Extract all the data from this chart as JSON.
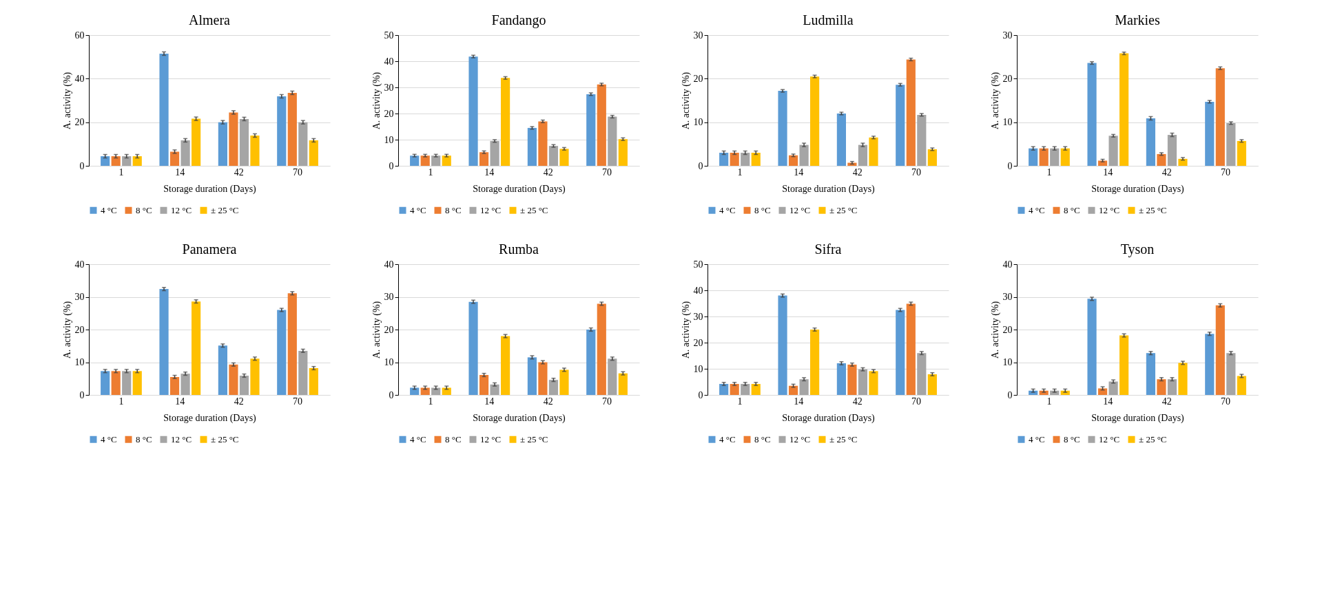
{
  "chart_data": [
    {
      "type": "bar",
      "title": "Almera",
      "xlabel": "Storage duration (Days)",
      "ylabel": "A. activity (%)",
      "categories": [
        "1",
        "14",
        "42",
        "70"
      ],
      "ylim": [
        0,
        60
      ],
      "yticks": [
        0,
        20,
        40,
        60
      ],
      "grid": "y",
      "legend": "bottom",
      "series": [
        {
          "name": "4 °C",
          "color": "#5b9bd5",
          "values": [
            4.4,
            51.5,
            20,
            31.9
          ],
          "errors": [
            0.8,
            0.8,
            0.8,
            0.8
          ]
        },
        {
          "name": "8 °C",
          "color": "#ed7d31",
          "values": [
            4.4,
            6.5,
            24.5,
            33.5
          ],
          "errors": [
            0.8,
            0.8,
            0.8,
            0.8
          ]
        },
        {
          "name": "12 °C",
          "color": "#a5a5a5",
          "values": [
            4.4,
            11.7,
            21.5,
            20
          ],
          "errors": [
            0.8,
            0.8,
            0.8,
            0.8
          ]
        },
        {
          "name": "± 25 °C",
          "color": "#ffc000",
          "values": [
            4.4,
            21.6,
            13.9,
            11.7
          ],
          "errors": [
            0.8,
            0.8,
            0.8,
            0.8
          ]
        }
      ]
    },
    {
      "type": "bar",
      "title": "Fandango",
      "xlabel": "Storage duration (Days)",
      "ylabel": "A. activity (%)",
      "categories": [
        "1",
        "14",
        "42",
        "70"
      ],
      "ylim": [
        0,
        50
      ],
      "yticks": [
        0,
        10,
        20,
        30,
        40,
        50
      ],
      "grid": "y",
      "legend": "bottom",
      "series": [
        {
          "name": "4 °C",
          "color": "#5b9bd5",
          "values": [
            3.9,
            41.8,
            14.5,
            27.4
          ],
          "errors": [
            0.5,
            0.5,
            0.5,
            0.5
          ]
        },
        {
          "name": "8 °C",
          "color": "#ed7d31",
          "values": [
            3.9,
            5.2,
            17,
            31.1
          ],
          "errors": [
            0.5,
            0.5,
            0.5,
            0.5
          ]
        },
        {
          "name": "12 °C",
          "color": "#a5a5a5",
          "values": [
            3.9,
            9.5,
            7.6,
            18.8
          ],
          "errors": [
            0.5,
            0.5,
            0.5,
            0.5
          ]
        },
        {
          "name": "± 25 °C",
          "color": "#ffc000",
          "values": [
            3.9,
            33.6,
            6.5,
            10.2
          ],
          "errors": [
            0.5,
            0.5,
            0.5,
            0.5
          ]
        }
      ]
    },
    {
      "type": "bar",
      "title": "Ludmilla",
      "xlabel": "Storage duration (Days)",
      "ylabel": "A. activity (%)",
      "categories": [
        "1",
        "14",
        "42",
        "70"
      ],
      "ylim": [
        0,
        30
      ],
      "yticks": [
        0,
        10,
        20,
        30
      ],
      "grid": "y",
      "legend": "bottom",
      "series": [
        {
          "name": "4 °C",
          "color": "#5b9bd5",
          "values": [
            3.0,
            17.2,
            12,
            18.6
          ],
          "errors": [
            0.4,
            0.3,
            0.3,
            0.3
          ]
        },
        {
          "name": "8 °C",
          "color": "#ed7d31",
          "values": [
            3.0,
            2.4,
            0.7,
            24.4
          ],
          "errors": [
            0.4,
            0.3,
            0.3,
            0.3
          ]
        },
        {
          "name": "12 °C",
          "color": "#a5a5a5",
          "values": [
            3.0,
            4.8,
            4.8,
            11.7
          ],
          "errors": [
            0.4,
            0.4,
            0.4,
            0.3
          ]
        },
        {
          "name": "± 25 °C",
          "color": "#ffc000",
          "values": [
            3.0,
            20.5,
            6.5,
            3.8
          ],
          "errors": [
            0.4,
            0.3,
            0.3,
            0.3
          ]
        }
      ]
    },
    {
      "type": "bar",
      "title": "Markies",
      "xlabel": "Storage duration (Days)",
      "ylabel": "A. activity (%)",
      "categories": [
        "1",
        "14",
        "42",
        "70"
      ],
      "ylim": [
        0,
        30
      ],
      "yticks": [
        0,
        10,
        20,
        30
      ],
      "grid": "y",
      "legend": "bottom",
      "series": [
        {
          "name": "4 °C",
          "color": "#5b9bd5",
          "values": [
            4.0,
            23.6,
            10.9,
            14.7
          ],
          "errors": [
            0.4,
            0.3,
            0.4,
            0.3
          ]
        },
        {
          "name": "8 °C",
          "color": "#ed7d31",
          "values": [
            4.0,
            1.2,
            2.7,
            22.4
          ],
          "errors": [
            0.4,
            0.3,
            0.3,
            0.3
          ]
        },
        {
          "name": "12 °C",
          "color": "#a5a5a5",
          "values": [
            4.0,
            6.9,
            7.1,
            9.8
          ],
          "errors": [
            0.4,
            0.3,
            0.4,
            0.3
          ]
        },
        {
          "name": "± 25 °C",
          "color": "#ffc000",
          "values": [
            4.0,
            25.8,
            1.6,
            5.7
          ],
          "errors": [
            0.4,
            0.3,
            0.3,
            0.3
          ]
        }
      ]
    },
    {
      "type": "bar",
      "title": "Panamera",
      "xlabel": "Storage duration (Days)",
      "ylabel": "A. activity (%)",
      "categories": [
        "1",
        "14",
        "42",
        "70"
      ],
      "ylim": [
        0,
        40
      ],
      "yticks": [
        0,
        10,
        20,
        30,
        40
      ],
      "grid": "y",
      "legend": "bottom",
      "series": [
        {
          "name": "4 °C",
          "color": "#5b9bd5",
          "values": [
            7.3,
            32.4,
            15.1,
            26
          ],
          "errors": [
            0.5,
            0.5,
            0.5,
            0.5
          ]
        },
        {
          "name": "8 °C",
          "color": "#ed7d31",
          "values": [
            7.3,
            5.5,
            9.3,
            31.1
          ],
          "errors": [
            0.5,
            0.5,
            0.5,
            0.5
          ]
        },
        {
          "name": "12 °C",
          "color": "#a5a5a5",
          "values": [
            7.3,
            6.5,
            5.9,
            13.5
          ],
          "errors": [
            0.5,
            0.5,
            0.5,
            0.5
          ]
        },
        {
          "name": "± 25 °C",
          "color": "#ffc000",
          "values": [
            7.3,
            28.6,
            11.1,
            8.2
          ],
          "errors": [
            0.5,
            0.5,
            0.5,
            0.5
          ]
        }
      ]
    },
    {
      "type": "bar",
      "title": "Rumba",
      "xlabel": "Storage duration (Days)",
      "ylabel": "A. activity (%)",
      "categories": [
        "1",
        "14",
        "42",
        "70"
      ],
      "ylim": [
        0,
        40
      ],
      "yticks": [
        0,
        10,
        20,
        30,
        40
      ],
      "grid": "y",
      "legend": "bottom",
      "series": [
        {
          "name": "4 °C",
          "color": "#5b9bd5",
          "values": [
            2.2,
            28.5,
            11.5,
            20
          ],
          "errors": [
            0.5,
            0.5,
            0.5,
            0.5
          ]
        },
        {
          "name": "8 °C",
          "color": "#ed7d31",
          "values": [
            2.2,
            6.1,
            10,
            27.9
          ],
          "errors": [
            0.5,
            0.5,
            0.5,
            0.5
          ]
        },
        {
          "name": "12 °C",
          "color": "#a5a5a5",
          "values": [
            2.2,
            3.2,
            4.6,
            11.1
          ],
          "errors": [
            0.5,
            0.5,
            0.5,
            0.5
          ]
        },
        {
          "name": "± 25 °C",
          "color": "#ffc000",
          "values": [
            2.2,
            18,
            7.7,
            6.6
          ],
          "errors": [
            0.5,
            0.5,
            0.5,
            0.5
          ]
        }
      ]
    },
    {
      "type": "bar",
      "title": "Sifra",
      "xlabel": "Storage duration (Days)",
      "ylabel": "A. activity (%)",
      "categories": [
        "1",
        "14",
        "42",
        "70"
      ],
      "ylim": [
        0,
        50
      ],
      "yticks": [
        0,
        10,
        20,
        30,
        40,
        50
      ],
      "grid": "y",
      "legend": "bottom",
      "series": [
        {
          "name": "4 °C",
          "color": "#5b9bd5",
          "values": [
            4.2,
            38,
            12.1,
            32.5
          ],
          "errors": [
            0.6,
            0.6,
            0.6,
            0.6
          ]
        },
        {
          "name": "8 °C",
          "color": "#ed7d31",
          "values": [
            4.2,
            3.5,
            11.6,
            34.9
          ],
          "errors": [
            0.6,
            0.6,
            0.6,
            0.6
          ]
        },
        {
          "name": "12 °C",
          "color": "#a5a5a5",
          "values": [
            4.2,
            6,
            9.8,
            16
          ],
          "errors": [
            0.6,
            0.6,
            0.6,
            0.6
          ]
        },
        {
          "name": "± 25 °C",
          "color": "#ffc000",
          "values": [
            4.2,
            25,
            9.1,
            7.9
          ],
          "errors": [
            0.6,
            0.6,
            0.6,
            0.6
          ]
        }
      ]
    },
    {
      "type": "bar",
      "title": "Tyson",
      "xlabel": "Storage duration (Days)",
      "ylabel": "A. activity (%)",
      "categories": [
        "1",
        "14",
        "42",
        "70"
      ],
      "ylim": [
        0,
        40
      ],
      "yticks": [
        0,
        10,
        20,
        30,
        40
      ],
      "grid": "y",
      "legend": "bottom",
      "series": [
        {
          "name": "4 °C",
          "color": "#5b9bd5",
          "values": [
            1.3,
            29.4,
            12.8,
            18.7
          ],
          "errors": [
            0.5,
            0.5,
            0.5,
            0.5
          ]
        },
        {
          "name": "8 °C",
          "color": "#ed7d31",
          "values": [
            1.3,
            2,
            4.8,
            27.4
          ],
          "errors": [
            0.5,
            0.5,
            0.5,
            0.5
          ]
        },
        {
          "name": "12 °C",
          "color": "#a5a5a5",
          "values": [
            1.3,
            4.1,
            4.8,
            12.8
          ],
          "errors": [
            0.5,
            0.5,
            0.5,
            0.5
          ]
        },
        {
          "name": "± 25 °C",
          "color": "#ffc000",
          "values": [
            1.3,
            18.2,
            9.8,
            5.8
          ],
          "errors": [
            0.5,
            0.5,
            0.5,
            0.5
          ]
        }
      ]
    }
  ]
}
